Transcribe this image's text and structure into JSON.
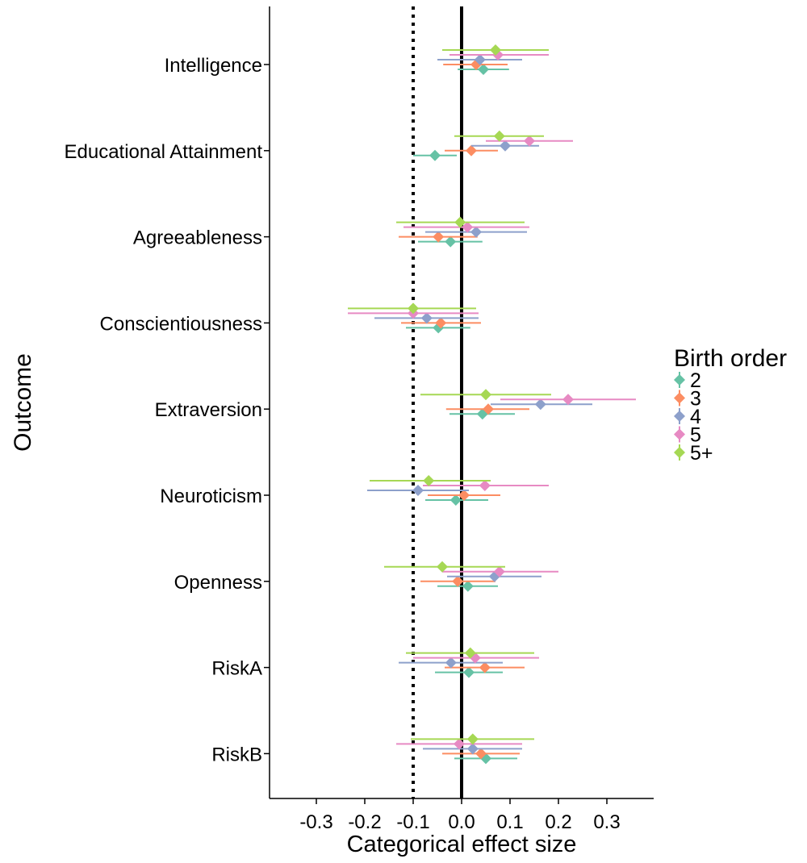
{
  "chart_data": {
    "type": "forest",
    "title": "",
    "xlabel": "Categorical effect size",
    "ylabel": "Outcome",
    "xlim": [
      -0.4,
      0.4
    ],
    "x_ticks": [
      "-0.3",
      "-0.2",
      "-0.1",
      "0.0",
      "0.1",
      "0.2",
      "0.3"
    ],
    "x_tick_values": [
      -0.3,
      -0.2,
      -0.1,
      0.0,
      0.1,
      0.2,
      0.3
    ],
    "reference_lines": [
      {
        "x": 0.0,
        "style": "solid"
      },
      {
        "x": -0.1,
        "style": "dotted"
      }
    ],
    "grid": false,
    "legend": {
      "title": "Birth order",
      "placement": "right"
    },
    "categories": [
      "Intelligence",
      "Educational Attainment",
      "Agreeableness",
      "Conscientiousness",
      "Extraversion",
      "Neuroticism",
      "Openness",
      "RiskA",
      "RiskB"
    ],
    "series": [
      {
        "name": "2",
        "color": "#66c2a5",
        "estimates": [
          0.045,
          -0.055,
          -0.023,
          -0.048,
          0.043,
          -0.012,
          0.013,
          0.015,
          0.05
        ],
        "lower": [
          -0.008,
          -0.1,
          -0.09,
          -0.115,
          -0.025,
          -0.075,
          -0.05,
          -0.055,
          -0.015
        ],
        "upper": [
          0.098,
          -0.01,
          0.043,
          0.018,
          0.11,
          0.055,
          0.075,
          0.085,
          0.115
        ]
      },
      {
        "name": "3",
        "color": "#fc8d62",
        "estimates": [
          0.03,
          0.02,
          -0.048,
          -0.043,
          0.055,
          0.005,
          -0.008,
          0.048,
          0.04
        ],
        "lower": [
          -0.038,
          -0.035,
          -0.13,
          -0.125,
          -0.032,
          -0.07,
          -0.085,
          -0.035,
          -0.04
        ],
        "upper": [
          0.095,
          0.075,
          0.033,
          0.04,
          0.14,
          0.08,
          0.07,
          0.13,
          0.12
        ]
      },
      {
        "name": "4",
        "color": "#8da0cb",
        "estimates": [
          0.038,
          0.09,
          0.03,
          -0.072,
          0.163,
          -0.09,
          0.068,
          -0.022,
          0.023
        ],
        "lower": [
          -0.05,
          0.02,
          -0.075,
          -0.18,
          0.06,
          -0.195,
          -0.03,
          -0.13,
          -0.08
        ],
        "upper": [
          0.125,
          0.16,
          0.135,
          0.035,
          0.27,
          0.015,
          0.165,
          0.085,
          0.125
        ]
      },
      {
        "name": "5",
        "color": "#e78ac3",
        "estimates": [
          0.075,
          0.14,
          0.012,
          -0.1,
          0.22,
          0.048,
          0.078,
          0.028,
          -0.005
        ],
        "lower": [
          -0.025,
          0.05,
          -0.12,
          -0.235,
          0.08,
          -0.08,
          -0.04,
          -0.1,
          -0.135
        ],
        "upper": [
          0.18,
          0.23,
          0.14,
          0.035,
          0.36,
          0.18,
          0.2,
          0.16,
          0.125
        ]
      },
      {
        "name": "5+",
        "color": "#a6d854",
        "estimates": [
          0.07,
          0.078,
          -0.003,
          -0.1,
          0.05,
          -0.068,
          -0.04,
          0.018,
          0.023
        ],
        "lower": [
          -0.04,
          -0.015,
          -0.135,
          -0.235,
          -0.085,
          -0.19,
          -0.16,
          -0.115,
          -0.105
        ],
        "upper": [
          0.18,
          0.17,
          0.13,
          0.03,
          0.185,
          0.06,
          0.09,
          0.15,
          0.15
        ]
      }
    ]
  }
}
